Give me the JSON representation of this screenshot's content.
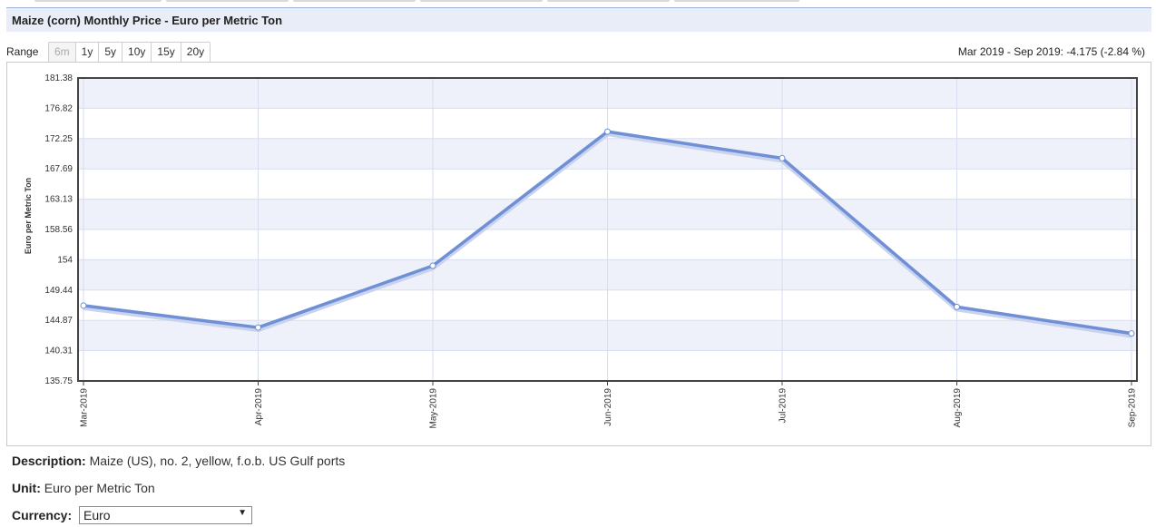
{
  "header": {
    "title": "Maize (corn) Monthly Price - Euro per Metric Ton"
  },
  "range": {
    "label": "Range",
    "options": [
      "6m",
      "1y",
      "5y",
      "10y",
      "15y",
      "20y"
    ],
    "active": "6m"
  },
  "change_text": "Mar 2019 - Sep 2019: -4.175 (-2.84 %)",
  "info": {
    "description_label": "Description:",
    "description_value": "Maize (US), no. 2, yellow, f.o.b. US Gulf ports",
    "unit_label": "Unit:",
    "unit_value": "Euro per Metric Ton",
    "currency_label": "Currency:",
    "currency_value": "Euro"
  },
  "colors": {
    "line": "#6f8fd6",
    "band": "#eef1f9",
    "grid": "#d8ddef"
  },
  "chart_data": {
    "type": "line",
    "x": [
      "Mar-2019",
      "Apr-2019",
      "May-2019",
      "Jun-2019",
      "Jul-2019",
      "Aug-2019",
      "Sep-2019"
    ],
    "values": [
      147.1,
      143.8,
      153.1,
      173.3,
      169.3,
      146.9,
      142.9
    ],
    "ylabel": "Euro per Metric Ton",
    "yticks": [
      "181.38",
      "176.82",
      "172.25",
      "167.69",
      "163.13",
      "158.56",
      "154",
      "149.44",
      "144.87",
      "140.31",
      "135.75"
    ],
    "ylim": [
      135.75,
      181.38
    ],
    "grid": true
  }
}
